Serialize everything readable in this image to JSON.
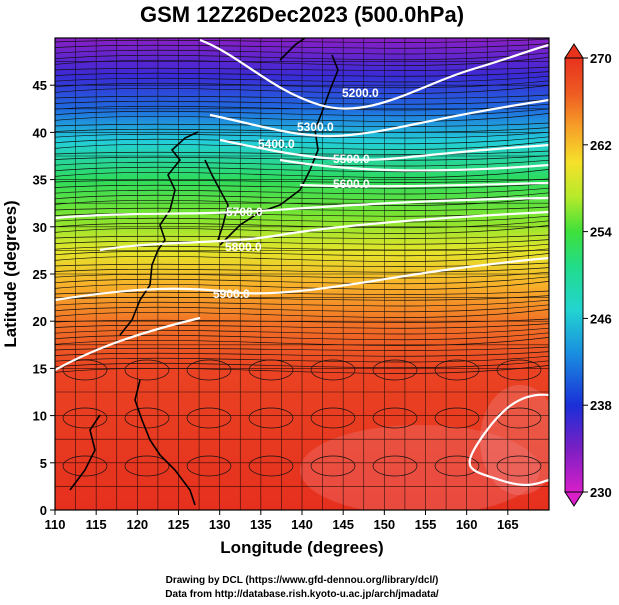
{
  "title": "GSM 12Z26Dec2023 (500.0hPa)",
  "x_axis": {
    "label": "Longitude (degrees)",
    "min": 110,
    "max": 170,
    "ticks": [
      "110",
      "115",
      "120",
      "125",
      "130",
      "135",
      "140",
      "145",
      "150",
      "155",
      "160",
      "165"
    ]
  },
  "y_axis": {
    "label": "Latitude  (degrees)",
    "min": 0,
    "max": 50,
    "ticks": [
      "0",
      "5",
      "10",
      "15",
      "20",
      "25",
      "30",
      "35",
      "40",
      "45"
    ]
  },
  "colorbar": {
    "min": 230,
    "max": 270,
    "ticks": [
      "270",
      "262",
      "254",
      "246",
      "238",
      "230"
    ],
    "colors": [
      "#d81fc8",
      "#7a1fc4",
      "#1a2fd8",
      "#1a8fe0",
      "#22d4d0",
      "#22dc8a",
      "#3ee03a",
      "#b6ea2a",
      "#f6e12a",
      "#f6a028",
      "#ee5a22",
      "#e8321e"
    ]
  },
  "contours": [
    {
      "label": "5200.0"
    },
    {
      "label": "5300.0"
    },
    {
      "label": "5400.0"
    },
    {
      "label": "5500.0"
    },
    {
      "label": "5600.0"
    },
    {
      "label": "5700.0"
    },
    {
      "label": "5800.0"
    },
    {
      "label": "5900.0"
    }
  ],
  "footer": {
    "line1": "Drawing by DCL (https://www.gfd-dennou.org/library/dcl/)",
    "line2": "Data from http://database.rish.kyoto-u.ac.jp/arch/jmadata/"
  }
}
